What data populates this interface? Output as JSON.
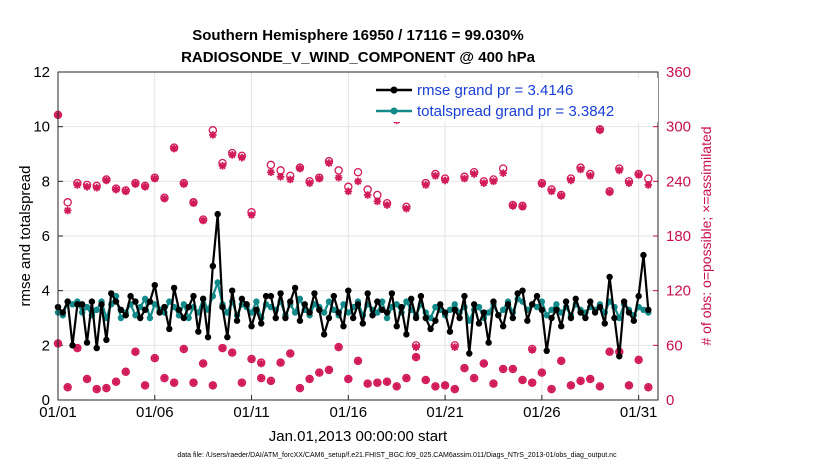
{
  "chart_data": {
    "type": "line",
    "title": "Southern Hemisphere 16950 / 17116 = 99.030%",
    "subtitle": "RADIOSONDE_V_WIND_COMPONENT @ 400 hPa",
    "xlabel": "Jan.01,2013 00:00:00 start",
    "ylabel": "rmse and totalspread",
    "y2label": "# of obs: o=possible; ×=assimilated",
    "footnote": "data file: /Users/raeder/DAI/ATM_forcXX/CAM6_setup/f.e21.FHIST_BGC.f09_025.CAM6assim.011/Diags_NTrS_2013-01/obs_diag_output.nc",
    "xlim": [
      1,
      32
    ],
    "ylim": [
      0,
      12
    ],
    "y2lim": [
      0,
      360
    ],
    "x_ticks": [
      1,
      6,
      11,
      16,
      21,
      26,
      31
    ],
    "x_tick_labels": [
      "01/01",
      "01/06",
      "01/11",
      "01/16",
      "01/21",
      "01/26",
      "01/31"
    ],
    "y_ticks": [
      0,
      2,
      4,
      6,
      8,
      10,
      12
    ],
    "y_tick_labels": [
      "0",
      "2",
      "4",
      "6",
      "8",
      "10",
      "12"
    ],
    "y2_ticks": [
      0,
      60,
      120,
      180,
      240,
      300,
      360
    ],
    "y2_tick_labels": [
      "0",
      "60",
      "120",
      "180",
      "240",
      "300",
      "360"
    ],
    "grid": true,
    "legend_position": "top-right",
    "series": [
      {
        "name": "rmse grand pr = 3.4146",
        "axis": "left",
        "color": "#000000",
        "marker": "dot",
        "x": [
          1.0,
          1.25,
          1.5,
          1.75,
          2.0,
          2.25,
          2.5,
          2.75,
          3.0,
          3.25,
          3.5,
          3.75,
          4.0,
          4.25,
          4.5,
          4.75,
          5.0,
          5.25,
          5.5,
          5.75,
          6.0,
          6.25,
          6.5,
          6.75,
          7.0,
          7.25,
          7.5,
          7.75,
          8.0,
          8.25,
          8.5,
          8.75,
          9.0,
          9.25,
          9.5,
          9.75,
          10.0,
          10.25,
          10.5,
          10.75,
          11.0,
          11.25,
          11.5,
          11.75,
          12.0,
          12.25,
          12.5,
          12.75,
          13.0,
          13.25,
          13.5,
          13.75,
          14.0,
          14.25,
          14.5,
          14.75,
          15.0,
          15.25,
          15.5,
          15.75,
          16.0,
          16.25,
          16.5,
          16.75,
          17.0,
          17.25,
          17.5,
          17.75,
          18.0,
          18.25,
          18.5,
          18.75,
          19.0,
          19.25,
          19.5,
          19.75,
          20.0,
          20.25,
          20.5,
          20.75,
          21.0,
          21.25,
          21.5,
          21.75,
          22.0,
          22.25,
          22.5,
          22.75,
          23.0,
          23.25,
          23.5,
          23.75,
          24.0,
          24.25,
          24.5,
          24.75,
          25.0,
          25.25,
          25.5,
          25.75,
          26.0,
          26.25,
          26.5,
          26.75,
          27.0,
          27.25,
          27.5,
          27.75,
          28.0,
          28.25,
          28.5,
          28.75,
          29.0,
          29.25,
          29.5,
          29.75,
          30.0,
          30.25,
          30.5,
          30.75,
          31.0,
          31.25,
          31.5
        ],
        "values": [
          3.4,
          3.2,
          3.6,
          2.0,
          3.5,
          3.5,
          2.1,
          3.6,
          1.9,
          3.5,
          2.2,
          3.9,
          3.6,
          3.3,
          3.1,
          3.8,
          3.6,
          3.0,
          3.3,
          3.6,
          4.2,
          3.2,
          3.4,
          2.6,
          4.1,
          3.3,
          3.0,
          3.4,
          3.8,
          2.5,
          3.7,
          2.3,
          4.9,
          6.8,
          3.4,
          2.3,
          4.0,
          2.9,
          3.7,
          3.5,
          2.7,
          3.3,
          2.8,
          3.8,
          3.8,
          3.0,
          3.9,
          3.0,
          3.6,
          4.1,
          2.9,
          3.5,
          3.2,
          3.9,
          3.3,
          2.4,
          3.0,
          3.8,
          3.2,
          2.7,
          4.0,
          3.0,
          3.5,
          2.8,
          3.9,
          3.1,
          3.6,
          3.3,
          3.2,
          3.9,
          2.7,
          3.4,
          2.4,
          3.7,
          3.0,
          3.8,
          3.0,
          2.6,
          2.9,
          3.5,
          3.2,
          2.5,
          3.3,
          3.0,
          3.8,
          1.7,
          3.5,
          2.8,
          3.2,
          2.1,
          3.6,
          3.1,
          2.7,
          3.5,
          3.0,
          3.9,
          4.0,
          2.9,
          3.5,
          3.8,
          3.3,
          1.8,
          3.0,
          3.3,
          2.7,
          3.6,
          3.0,
          3.7,
          3.2,
          3.0,
          3.6,
          3.2,
          3.4,
          2.8,
          4.5,
          3.0,
          1.6,
          3.6,
          3.2,
          2.9,
          3.8,
          5.3,
          3.3
        ],
        "grand_mean": 3.4146
      },
      {
        "name": "totalspread grand pr = 3.3842",
        "axis": "left",
        "color": "#138a8a",
        "marker": "dot",
        "x": [
          1.0,
          1.25,
          1.5,
          1.75,
          2.0,
          2.25,
          2.5,
          2.75,
          3.0,
          3.25,
          3.5,
          3.75,
          4.0,
          4.25,
          4.5,
          4.75,
          5.0,
          5.25,
          5.5,
          5.75,
          6.0,
          6.25,
          6.5,
          6.75,
          7.0,
          7.25,
          7.5,
          7.75,
          8.0,
          8.25,
          8.5,
          8.75,
          9.0,
          9.25,
          9.5,
          9.75,
          10.0,
          10.25,
          10.5,
          10.75,
          11.0,
          11.25,
          11.5,
          11.75,
          12.0,
          12.25,
          12.5,
          12.75,
          13.0,
          13.25,
          13.5,
          13.75,
          14.0,
          14.25,
          14.5,
          14.75,
          15.0,
          15.25,
          15.5,
          15.75,
          16.0,
          16.25,
          16.5,
          16.75,
          17.0,
          17.25,
          17.5,
          17.75,
          18.0,
          18.25,
          18.5,
          18.75,
          19.0,
          19.25,
          19.5,
          19.75,
          20.0,
          20.25,
          20.5,
          20.75,
          21.0,
          21.25,
          21.5,
          21.75,
          22.0,
          22.25,
          22.5,
          22.75,
          23.0,
          23.25,
          23.5,
          23.75,
          24.0,
          24.25,
          24.5,
          24.75,
          25.0,
          25.25,
          25.5,
          25.75,
          26.0,
          26.25,
          26.5,
          26.75,
          27.0,
          27.25,
          27.5,
          27.75,
          28.0,
          28.25,
          28.5,
          28.75,
          29.0,
          29.25,
          29.5,
          29.75,
          30.0,
          30.25,
          30.5,
          30.75,
          31.0,
          31.25,
          31.5
        ],
        "values": [
          3.2,
          3.1,
          3.6,
          3.5,
          3.6,
          3.2,
          3.4,
          3.1,
          3.3,
          3.6,
          3.0,
          3.5,
          3.8,
          3.0,
          3.2,
          3.5,
          3.1,
          3.4,
          3.7,
          3.0,
          3.5,
          3.3,
          3.2,
          3.6,
          3.4,
          3.1,
          3.5,
          3.0,
          3.4,
          3.2,
          3.7,
          3.3,
          3.8,
          4.3,
          3.5,
          3.2,
          3.6,
          3.1,
          3.5,
          3.4,
          3.2,
          3.6,
          3.0,
          3.5,
          3.4,
          3.3,
          3.6,
          3.1,
          3.5,
          3.2,
          3.7,
          3.3,
          3.1,
          3.5,
          3.4,
          3.2,
          3.6,
          3.3,
          3.1,
          3.5,
          3.2,
          3.4,
          3.6,
          3.1,
          3.5,
          3.3,
          3.2,
          3.6,
          3.0,
          3.4,
          3.5,
          3.2,
          3.6,
          3.3,
          3.1,
          3.5,
          3.2,
          3.0,
          3.4,
          3.3,
          3.1,
          3.3,
          3.5,
          3.2,
          3.4,
          2.9,
          3.3,
          3.4,
          3.0,
          3.2,
          3.5,
          3.1,
          3.3,
          3.6,
          3.2,
          3.7,
          3.6,
          3.3,
          3.5,
          3.4,
          3.6,
          3.1,
          3.3,
          3.5,
          3.2,
          3.4,
          3.1,
          3.5,
          3.3,
          3.2,
          3.4,
          3.3,
          3.5,
          3.2,
          3.6,
          3.4,
          3.0,
          3.5,
          3.3,
          3.1,
          3.4,
          3.3,
          3.2
        ],
        "grand_mean": 3.3842
      },
      {
        "name": "obs possible",
        "axis": "right",
        "color": "#d11a5a",
        "marker": "circle",
        "x": [
          1.0,
          1.5,
          2.0,
          2.5,
          3.0,
          3.5,
          4.0,
          4.5,
          5.0,
          5.5,
          6.0,
          6.5,
          7.0,
          7.5,
          8.0,
          8.5,
          9.0,
          9.5,
          10.0,
          10.5,
          11.0,
          11.5,
          12.0,
          12.5,
          13.0,
          13.5,
          14.0,
          14.5,
          15.0,
          15.5,
          16.0,
          16.5,
          17.0,
          17.5,
          18.0,
          18.5,
          19.0,
          19.5,
          20.0,
          20.5,
          21.0,
          21.5,
          22.0,
          22.5,
          23.0,
          23.5,
          24.0,
          24.5,
          25.0,
          25.5,
          26.0,
          26.5,
          27.0,
          27.5,
          28.0,
          28.5,
          29.0,
          29.5,
          30.0,
          30.5,
          31.0,
          31.5
        ],
        "values": [
          313,
          217,
          238,
          236,
          235,
          242,
          232,
          230,
          238,
          235,
          244,
          222,
          277,
          238,
          217,
          198,
          296,
          260,
          271,
          268,
          206,
          41,
          258,
          252,
          246,
          255,
          240,
          244,
          262,
          252,
          234,
          250,
          231,
          225,
          216,
          309,
          212,
          60,
          238,
          248,
          243,
          60,
          245,
          250,
          240,
          242,
          254,
          214,
          213,
          56,
          238,
          231,
          225,
          243,
          255,
          248,
          297,
          229,
          254,
          240,
          248,
          243
        ],
        "possible_low": [
          62,
          14,
          57,
          23,
          12,
          13,
          20,
          31,
          53,
          16,
          46,
          24,
          19,
          56,
          19,
          40,
          16,
          57,
          52,
          19,
          45,
          24,
          21,
          41,
          51,
          13,
          23,
          30,
          33,
          58,
          23,
          43,
          18,
          19,
          20,
          15,
          24,
          47,
          22,
          15,
          16,
          12,
          35,
          24,
          40,
          18,
          34,
          34,
          22,
          19,
          30,
          12,
          43,
          16,
          21,
          23,
          15,
          53,
          53,
          16,
          44,
          14
        ],
        "assimilated": [
          313,
          208,
          236,
          234,
          233,
          241,
          231,
          229,
          237,
          234,
          243,
          221,
          276,
          237,
          216,
          197,
          291,
          257,
          269,
          266,
          203,
          40,
          250,
          245,
          242,
          254,
          238,
          243,
          260,
          244,
          229,
          240,
          225,
          218,
          214,
          307,
          210,
          58,
          236,
          246,
          241,
          58,
          243,
          248,
          238,
          240,
          249,
          213,
          212,
          55,
          237,
          229,
          224,
          241,
          253,
          246,
          296,
          228,
          252,
          238,
          247,
          236
        ]
      }
    ]
  }
}
